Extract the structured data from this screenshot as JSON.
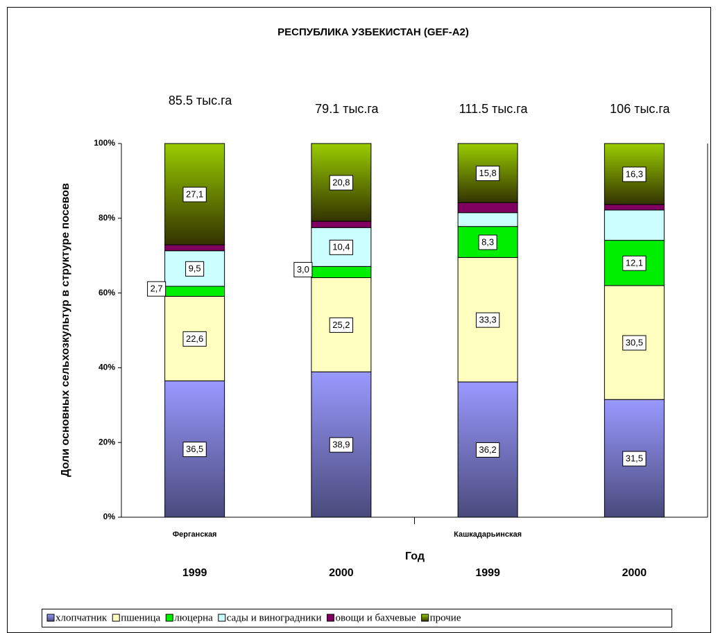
{
  "chart_data": {
    "type": "stacked_bar_percent",
    "title": "РЕСПУБЛИКА УЗБЕКИСТАН (GEF-A2)",
    "y_axis_label": "Доли основных сельхозкультур в структуре посевов",
    "x_axis_label": "Год",
    "categories": [
      "1999",
      "2000",
      "1999",
      "2000"
    ],
    "group_labels": [
      "Ферганская",
      "Кашкадарьинская"
    ],
    "annotations": [
      "85.5 тыс.га",
      "79.1 тыс.га",
      "111.5 тыс.га",
      "106 тыс.га"
    ],
    "ylim": [
      0,
      100
    ],
    "yticks": [
      {
        "value": 0,
        "label": "0%"
      },
      {
        "value": 20,
        "label": "20%"
      },
      {
        "value": 40,
        "label": "40%"
      },
      {
        "value": 60,
        "label": "60%"
      },
      {
        "value": 80,
        "label": "80%"
      },
      {
        "value": 100,
        "label": "100%"
      }
    ],
    "legend": "bottom",
    "series": [
      {
        "name": "хлопчатник",
        "color": "#9999ff",
        "values": [
          36.5,
          38.9,
          36.2,
          31.5
        ],
        "value_labels": [
          "36,5",
          "38,9",
          "36,2",
          "31,5"
        ]
      },
      {
        "name": "пшеница",
        "color": "#ffffc0",
        "values": [
          22.6,
          25.2,
          33.3,
          30.5
        ],
        "value_labels": [
          "22,6",
          "25,2",
          "33,3",
          "30,5"
        ]
      },
      {
        "name": "люцерна",
        "color": "#00ee00",
        "values": [
          2.7,
          3.0,
          8.3,
          12.1
        ],
        "value_labels": [
          "2,7",
          "3,0",
          "8,3",
          "12,1"
        ]
      },
      {
        "name": "сады и виноградники",
        "color": "#ccffff",
        "values": [
          9.5,
          10.4,
          3.7,
          8.1
        ],
        "value_labels": [
          "9,5",
          "10,4",
          null,
          null
        ]
      },
      {
        "name": "овощи и бахчевые",
        "color": "#800060",
        "values": [
          1.6,
          1.7,
          2.7,
          1.5
        ],
        "value_labels": [
          null,
          null,
          null,
          null
        ]
      },
      {
        "name": "прочие",
        "color": "#99cc00",
        "values": [
          27.1,
          20.8,
          15.8,
          16.3
        ],
        "value_labels": [
          "27,1",
          "20,8",
          "15,8",
          "16,3"
        ]
      }
    ]
  }
}
